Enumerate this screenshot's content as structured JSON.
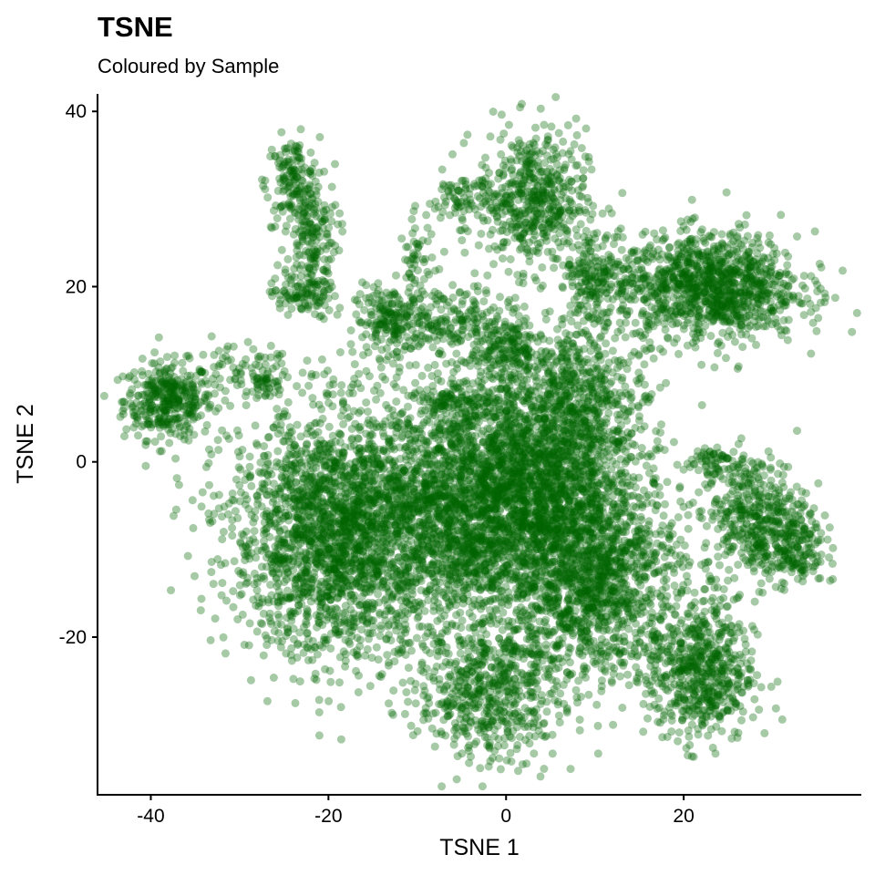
{
  "chart_data": {
    "type": "scatter",
    "title": "TSNE",
    "subtitle": "Coloured by Sample",
    "xlabel": "TSNE 1",
    "ylabel": "TSNE 2",
    "xlim": [
      -46,
      40
    ],
    "ylim": [
      -38,
      42
    ],
    "x_ticks": [
      -40,
      -20,
      0,
      20
    ],
    "y_ticks": [
      40,
      20,
      0,
      -20
    ],
    "x_tick_labels": [
      "-40",
      "-20",
      "0",
      "20"
    ],
    "y_tick_labels": [
      "40",
      "20",
      "0",
      "-20"
    ],
    "grid": false,
    "legend": "none",
    "point_color": "#006400",
    "point_opacity": 0.35,
    "clusters": [
      {
        "cx": -38,
        "cy": 7,
        "sx": 2.5,
        "sy": 2.2,
        "n": 380
      },
      {
        "cx": -30,
        "cy": 10,
        "sx": 3,
        "sy": 1.5,
        "n": 60
      },
      {
        "cx": -27,
        "cy": 9,
        "sx": 1,
        "sy": 1,
        "n": 40
      },
      {
        "cx": -24,
        "cy": 32,
        "sx": 1.5,
        "sy": 2.5,
        "n": 150
      },
      {
        "cx": -22,
        "cy": 26,
        "sx": 1.5,
        "sy": 3,
        "n": 160
      },
      {
        "cx": -24,
        "cy": 19,
        "sx": 1.2,
        "sy": 1,
        "n": 60
      },
      {
        "cx": -21,
        "cy": 19,
        "sx": 1,
        "sy": 1.5,
        "n": 50
      },
      {
        "cx": -13,
        "cy": 16,
        "sx": 2,
        "sy": 2,
        "n": 200
      },
      {
        "cx": -10,
        "cy": 22,
        "sx": 1,
        "sy": 3,
        "n": 60
      },
      {
        "cx": -5,
        "cy": 30,
        "sx": 2,
        "sy": 1.5,
        "n": 80
      },
      {
        "cx": 3,
        "cy": 30,
        "sx": 3,
        "sy": 4,
        "n": 520
      },
      {
        "cx": 10,
        "cy": 21,
        "sx": 2,
        "sy": 3,
        "n": 220
      },
      {
        "cx": 23,
        "cy": 20,
        "sx": 5,
        "sy": 3,
        "n": 1100
      },
      {
        "cx": -6,
        "cy": 16,
        "sx": 3,
        "sy": 2,
        "n": 160
      },
      {
        "cx": 0,
        "cy": 13,
        "sx": 2,
        "sy": 2,
        "n": 180
      },
      {
        "cx": 9,
        "cy": 7,
        "sx": 3.5,
        "sy": 4,
        "n": 420
      },
      {
        "cx": -6,
        "cy": 7,
        "sx": 2,
        "sy": 1,
        "n": 80
      },
      {
        "cx": -19,
        "cy": -8,
        "sx": 6,
        "sy": 7,
        "n": 2300
      },
      {
        "cx": -5,
        "cy": -5,
        "sx": 5,
        "sy": 7,
        "n": 1700
      },
      {
        "cx": 4,
        "cy": -2,
        "sx": 5,
        "sy": 7,
        "n": 1700
      },
      {
        "cx": 10,
        "cy": -13,
        "sx": 5,
        "sy": 6,
        "n": 1400
      },
      {
        "cx": -2,
        "cy": -26,
        "sx": 4,
        "sy": 4,
        "n": 600
      },
      {
        "cx": 22,
        "cy": -24,
        "sx": 3,
        "sy": 4,
        "n": 600
      },
      {
        "cx": 28,
        "cy": -6,
        "sx": 3,
        "sy": 3.5,
        "n": 420
      },
      {
        "cx": 23,
        "cy": 0,
        "sx": 1.5,
        "sy": 1,
        "n": 60
      },
      {
        "cx": 32,
        "cy": -10,
        "sx": 2,
        "sy": 2,
        "n": 180
      }
    ]
  }
}
